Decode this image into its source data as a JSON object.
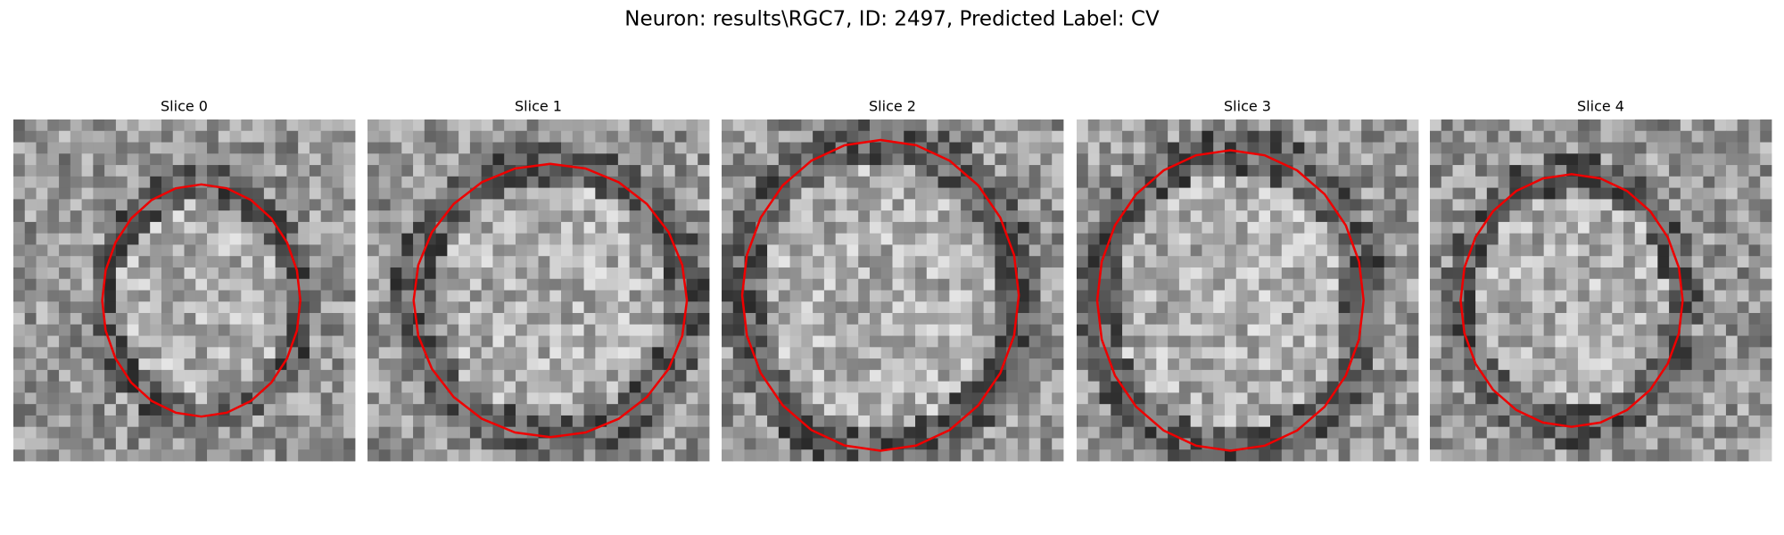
{
  "title": "Neuron: results\\RGC7, ID: 2497, Predicted Label: CV",
  "panels": [
    {
      "title": "Slice 0"
    },
    {
      "title": "Slice 1"
    },
    {
      "title": "Slice 2"
    },
    {
      "title": "Slice 3"
    },
    {
      "title": "Slice 4"
    }
  ]
}
